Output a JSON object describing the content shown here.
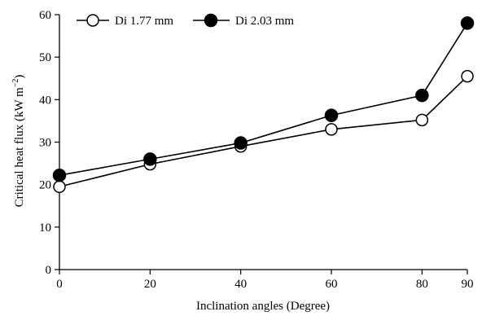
{
  "chart_data": {
    "type": "line",
    "x": [
      0,
      20,
      40,
      60,
      80,
      90
    ],
    "x_tick_labels": [
      "0",
      "20",
      "40",
      "60",
      "80",
      "90"
    ],
    "y_tick_labels": [
      "0",
      "10",
      "20",
      "30",
      "40",
      "50",
      "60"
    ],
    "xlabel": "Inclination angles (Degree)",
    "ylabel": "Critical heat flux (kW m",
    "ylabel_superscript": "−2",
    "ylabel_suffix": ")",
    "ylim": [
      0,
      60
    ],
    "grid": false,
    "legend_position": "top-left",
    "series": [
      {
        "name": "Di 1.77 mm",
        "marker": "open-circle",
        "color": "#000000",
        "values": [
          19.5,
          24.8,
          29.0,
          33.0,
          35.2,
          45.5
        ]
      },
      {
        "name": "Di 2.03 mm",
        "marker": "filled-circle",
        "color": "#000000",
        "values": [
          22.2,
          26.0,
          29.8,
          36.3,
          41.0,
          58.0
        ]
      }
    ]
  }
}
